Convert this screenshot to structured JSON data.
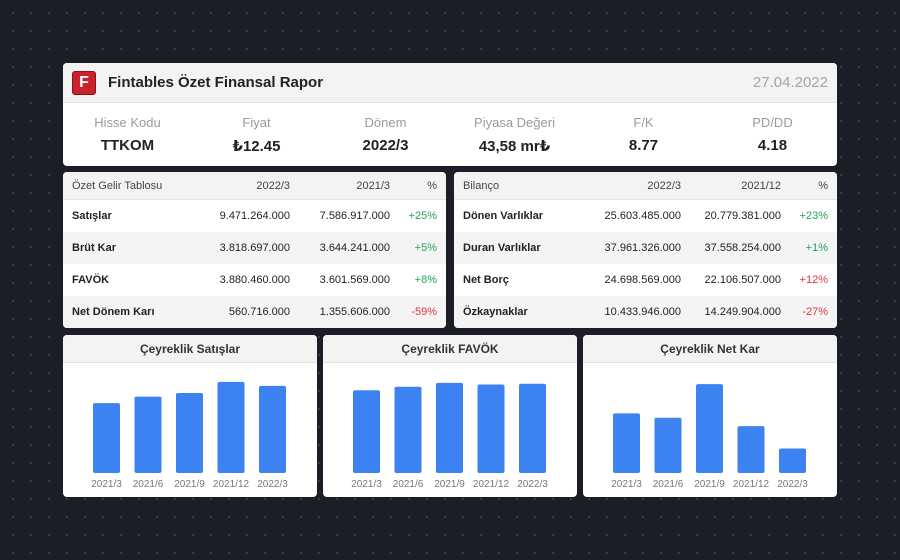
{
  "header": {
    "logo_letter": "F",
    "title": "Fintables Özet Finansal Rapor",
    "date": "27.04.2022",
    "stats": [
      {
        "label": "Hisse Kodu",
        "value": "TTKOM"
      },
      {
        "label": "Fiyat",
        "value": "₺12.45"
      },
      {
        "label": "Dönem",
        "value": "2022/3"
      },
      {
        "label": "Piyasa Değeri",
        "value": "43,58 mr₺"
      },
      {
        "label": "F/K",
        "value": "8.77"
      },
      {
        "label": "PD/DD",
        "value": "4.18"
      }
    ]
  },
  "income": {
    "headers": [
      "Özet Gelir Tablosu",
      "2022/3",
      "2021/3",
      "%"
    ],
    "rows": [
      {
        "name": "Satışlar",
        "v1": "9.471.264.000",
        "v2": "7.586.917.000",
        "pct": "+25%",
        "sign": "pos"
      },
      {
        "name": "Brüt Kar",
        "v1": "3.818.697.000",
        "v2": "3.644.241.000",
        "pct": "+5%",
        "sign": "pos"
      },
      {
        "name": "FAVÖK",
        "v1": "3.880.460.000",
        "v2": "3.601.569.000",
        "pct": "+8%",
        "sign": "pos"
      },
      {
        "name": "Net Dönem Karı",
        "v1": "560.716.000",
        "v2": "1.355.606.000",
        "pct": "-59%",
        "sign": "neg"
      }
    ]
  },
  "balance": {
    "headers": [
      "Bilanço",
      "2022/3",
      "2021/12",
      "%"
    ],
    "rows": [
      {
        "name": "Dönen Varlıklar",
        "v1": "25.603.485.000",
        "v2": "20.779.381.000",
        "pct": "+23%",
        "sign": "pos"
      },
      {
        "name": "Duran Varlıklar",
        "v1": "37.961.326.000",
        "v2": "37.558.254.000",
        "pct": "+1%",
        "sign": "pos"
      },
      {
        "name": "Net Borç",
        "v1": "24.698.569.000",
        "v2": "22.106.507.000",
        "pct": "+12%",
        "sign": "neg"
      },
      {
        "name": "Özkaynaklar",
        "v1": "10.433.946.000",
        "v2": "14.249.904.000",
        "pct": "-27%",
        "sign": "neg"
      }
    ]
  },
  "chart_data": [
    {
      "type": "bar",
      "title": "Çeyreklik Satışlar",
      "categories": [
        "2021/3",
        "2021/6",
        "2021/9",
        "2021/12",
        "2022/3"
      ],
      "values": [
        7.59,
        8.3,
        8.7,
        9.9,
        9.47
      ],
      "ylim": [
        0,
        10
      ],
      "color": "#3c82f0"
    },
    {
      "type": "bar",
      "title": "Çeyreklik FAVÖK",
      "categories": [
        "2021/3",
        "2021/6",
        "2021/9",
        "2021/12",
        "2022/3"
      ],
      "values": [
        3.6,
        3.75,
        3.92,
        3.85,
        3.88
      ],
      "ylim": [
        0,
        4
      ],
      "color": "#3c82f0"
    },
    {
      "type": "bar",
      "title": "Çeyreklik Net Kar",
      "categories": [
        "2021/3",
        "2021/6",
        "2021/9",
        "2021/12",
        "2022/3"
      ],
      "values": [
        1.36,
        1.26,
        2.03,
        1.07,
        0.56
      ],
      "ylim": [
        0,
        2.1
      ],
      "color": "#3c82f0"
    }
  ]
}
